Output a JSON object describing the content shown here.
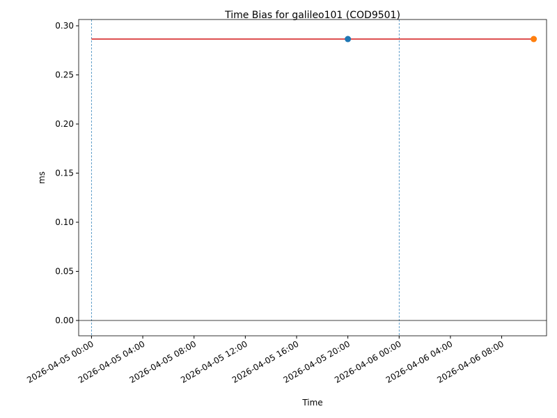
{
  "chart_data": {
    "type": "line",
    "title": "Time Bias for galileo101 (COD9501)",
    "xlabel": "Time",
    "ylabel": "ms",
    "xlim": [
      "2026-04-04 23:00",
      "2026-04-06 11:30"
    ],
    "xticks": [
      "2026-04-05 00:00",
      "2026-04-05 04:00",
      "2026-04-05 08:00",
      "2026-04-05 12:00",
      "2026-04-05 16:00",
      "2026-04-05 20:00",
      "2026-04-06 00:00",
      "2026-04-06 04:00",
      "2026-04-06 08:00"
    ],
    "ylim": [
      -0.0156,
      0.3064
    ],
    "yticks": [
      {
        "value": 0,
        "label": "0.00"
      },
      {
        "value": 0.05,
        "label": "0.05"
      },
      {
        "value": 0.1,
        "label": "0.10"
      },
      {
        "value": 0.15,
        "label": "0.15"
      },
      {
        "value": 0.2,
        "label": "0.20"
      },
      {
        "value": 0.25,
        "label": "0.25"
      },
      {
        "value": 0.3,
        "label": "0.30"
      }
    ],
    "series": [
      {
        "style": "line",
        "color": "#d62728",
        "x": [
          "2026-04-05 00:00",
          "2026-04-06 10:30"
        ],
        "values": [
          0.2865,
          0.2865
        ]
      },
      {
        "style": "marker",
        "color": "#1f77b4",
        "x": [
          "2026-04-05 20:00"
        ],
        "values": [
          0.2865
        ]
      },
      {
        "style": "marker",
        "color": "#ff7f0e",
        "x": [
          "2026-04-06 10:30"
        ],
        "values": [
          0.2865
        ]
      }
    ],
    "vlines": {
      "color": "#1f77b4",
      "x": [
        "2026-04-05 00:00",
        "2026-04-06 00:00"
      ]
    },
    "hline": {
      "color": "#000000",
      "value": 0
    }
  }
}
